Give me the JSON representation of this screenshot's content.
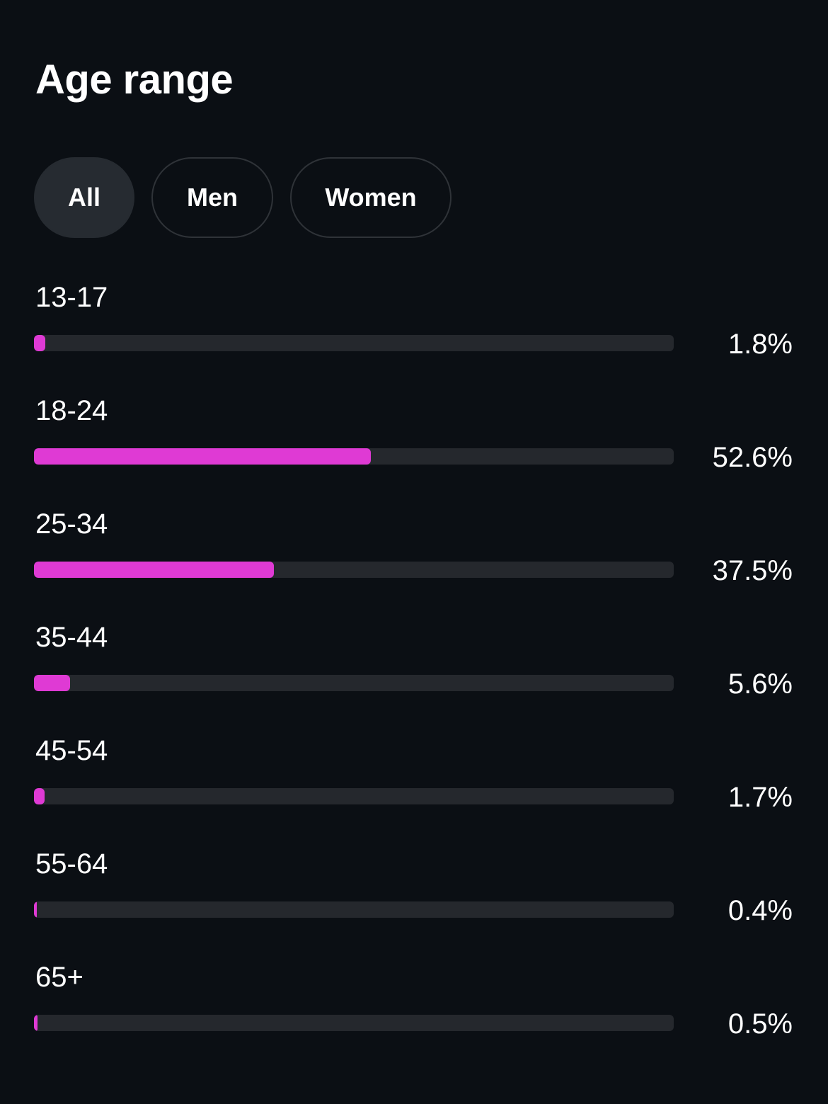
{
  "title": "Age range",
  "tabs": [
    {
      "label": "All",
      "active": true
    },
    {
      "label": "Men",
      "active": false
    },
    {
      "label": "Women",
      "active": false
    }
  ],
  "colors": {
    "background": "#0b0f14",
    "bar_fill": "#df3ad4",
    "bar_track": "#25282d",
    "tab_active_bg": "#262b31",
    "tab_border": "#2f3338"
  },
  "chart_data": {
    "type": "bar",
    "categories": [
      "13-17",
      "18-24",
      "25-34",
      "35-44",
      "45-54",
      "55-64",
      "65+"
    ],
    "values": [
      1.8,
      52.6,
      37.5,
      5.6,
      1.7,
      0.4,
      0.5
    ],
    "value_labels": [
      "1.8%",
      "52.6%",
      "37.5%",
      "5.6%",
      "1.7%",
      "0.4%",
      "0.5%"
    ],
    "ylim": [
      0,
      100
    ]
  }
}
